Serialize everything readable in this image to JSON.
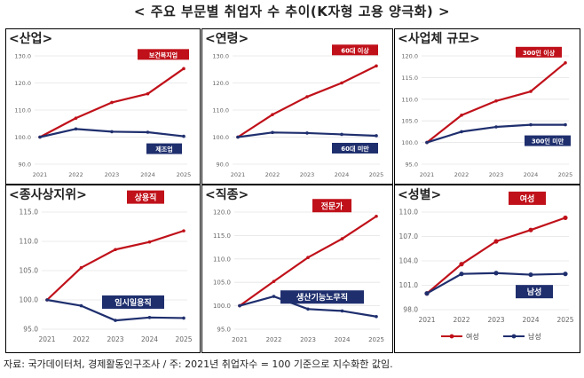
{
  "page_title": "< 주요 부문별 취업자 수 추이(K자형 고용 양극화) >",
  "source": "자료: 국가데이터처, 경제활동인구조사 / 주: 2021년 취업자수 = 100 기준으로 지수화한 값임.",
  "colors": {
    "upper": "#c0111a",
    "lower": "#1f2f6e",
    "grid": "#e4e4e4"
  },
  "chart_data": [
    {
      "type": "line",
      "title": "<산업>",
      "x": [
        "2021",
        "2022",
        "2023",
        "2024",
        "2025"
      ],
      "ylim": [
        90,
        130
      ],
      "yticks": [
        "90.0",
        "100.0",
        "110.0",
        "120.0",
        "130.0"
      ],
      "series": [
        {
          "name": "보건복지업",
          "values": [
            100.0,
            107.0,
            112.8,
            116.0,
            125.3
          ]
        },
        {
          "name": "제조업",
          "values": [
            100.0,
            103.0,
            102.0,
            101.8,
            100.3
          ]
        }
      ]
    },
    {
      "type": "line",
      "title": "<연령>",
      "x": [
        "2021",
        "2022",
        "2023",
        "2024",
        "2025"
      ],
      "ylim": [
        90,
        130
      ],
      "yticks": [
        "90.0",
        "100.0",
        "110.0",
        "120.0",
        "130.0"
      ],
      "series": [
        {
          "name": "60대 이상",
          "values": [
            100.0,
            108.3,
            114.9,
            120.0,
            126.3
          ]
        },
        {
          "name": "60대 미만",
          "values": [
            100.0,
            101.7,
            101.5,
            101.0,
            100.5
          ]
        }
      ]
    },
    {
      "type": "line",
      "title": "<사업체 규모>",
      "x": [
        "2021",
        "2022",
        "2023",
        "2024",
        "2025"
      ],
      "ylim": [
        95,
        120
      ],
      "yticks": [
        "95.0",
        "100.0",
        "105.0",
        "110.0",
        "115.0",
        "120.0"
      ],
      "series": [
        {
          "name": "300인 이상",
          "values": [
            100.0,
            106.3,
            109.6,
            111.8,
            118.4
          ]
        },
        {
          "name": "300인 미만",
          "values": [
            100.0,
            102.5,
            103.6,
            104.1,
            104.1
          ]
        }
      ]
    },
    {
      "type": "line",
      "title": "<종사상지위>",
      "x": [
        "2021",
        "2022",
        "2023",
        "2024",
        "2025"
      ],
      "ylim": [
        95,
        115
      ],
      "yticks": [
        "95.0",
        "100.0",
        "105.0",
        "110.0",
        "115.0"
      ],
      "series": [
        {
          "name": "상용직",
          "values": [
            100.0,
            105.5,
            108.6,
            109.9,
            111.8
          ]
        },
        {
          "name": "임시일용직",
          "values": [
            100.0,
            99.0,
            96.5,
            97.0,
            96.9
          ]
        }
      ]
    },
    {
      "type": "line",
      "title": "<직종>",
      "x": [
        "2021",
        "2022",
        "2023",
        "2024",
        "2025"
      ],
      "ylim": [
        95,
        120
      ],
      "yticks": [
        "95.0",
        "100.0",
        "105.0",
        "110.0",
        "115.0",
        "120.0"
      ],
      "series": [
        {
          "name": "전문가",
          "values": [
            100.0,
            105.2,
            110.3,
            114.3,
            119.1
          ]
        },
        {
          "name": "생산기능노무직",
          "values": [
            100.0,
            102.0,
            99.3,
            98.9,
            97.7
          ]
        }
      ]
    },
    {
      "type": "line",
      "title": "<성별>",
      "x": [
        "2021",
        "2022",
        "2023",
        "2024",
        "2025"
      ],
      "ylim": [
        98,
        110
      ],
      "yticks": [
        "98.0",
        "101.0",
        "104.0",
        "107.0",
        "110.0"
      ],
      "legend": [
        "여성",
        "남성"
      ],
      "series": [
        {
          "name": "여성",
          "values": [
            100.0,
            103.6,
            106.4,
            107.8,
            109.3
          ]
        },
        {
          "name": "남성",
          "values": [
            100.0,
            102.4,
            102.5,
            102.3,
            102.4
          ]
        }
      ]
    }
  ]
}
